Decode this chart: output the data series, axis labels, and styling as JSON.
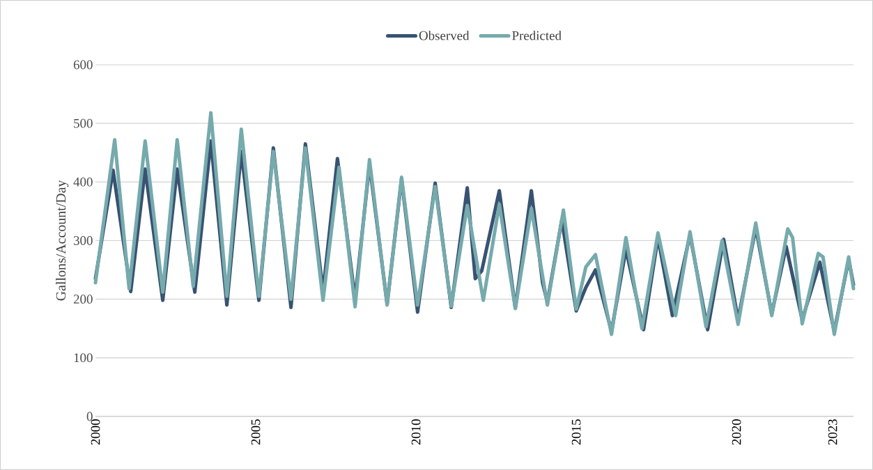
{
  "chart_data": {
    "type": "line",
    "ylabel": "Gallons/Account/Day",
    "xlim": [
      2000,
      2023.65
    ],
    "ylim": [
      0,
      600
    ],
    "xticks": [
      2000,
      2005,
      2010,
      2015,
      2020,
      2023
    ],
    "yticks": [
      0,
      100,
      200,
      300,
      400,
      500,
      600
    ],
    "grid": "y",
    "legend": "top",
    "series": [
      {
        "name": "Observed",
        "color": "#385272",
        "x": [
          2000,
          2000.55,
          2001.1,
          2001.55,
          2002.1,
          2002.55,
          2003.1,
          2003.6,
          2004.1,
          2004.55,
          2005.1,
          2005.55,
          2006.1,
          2006.55,
          2007.1,
          2007.55,
          2008.1,
          2008.55,
          2009.1,
          2009.55,
          2010.05,
          2010.6,
          2011.1,
          2011.6,
          2011.85,
          2012.05,
          2012.6,
          2013.1,
          2013.6,
          2013.95,
          2014.1,
          2014.55,
          2015.0,
          2015.3,
          2015.6,
          2016.1,
          2016.55,
          2017.1,
          2017.55,
          2018.0,
          2018.55,
          2019.1,
          2019.6,
          2020.05,
          2020.6,
          2021.1,
          2021.55,
          2022.05,
          2022.6,
          2023.05,
          2023.5,
          2023.65
        ],
        "values": [
          235,
          420,
          213,
          422,
          198,
          422,
          212,
          470,
          190,
          452,
          198,
          458,
          186,
          465,
          213,
          440,
          200,
          430,
          192,
          405,
          178,
          398,
          186,
          390,
          235,
          248,
          385,
          185,
          385,
          228,
          195,
          335,
          180,
          220,
          250,
          145,
          285,
          148,
          305,
          172,
          310,
          148,
          302,
          165,
          322,
          175,
          290,
          165,
          263,
          145,
          268,
          225
        ]
      },
      {
        "name": "Predicted",
        "color": "#76aaad",
        "x": [
          2000,
          2000.6,
          2001.05,
          2001.55,
          2002.1,
          2002.55,
          2003.05,
          2003.6,
          2004.1,
          2004.55,
          2005.1,
          2005.55,
          2006.1,
          2006.55,
          2007.1,
          2007.6,
          2008.1,
          2008.55,
          2009.1,
          2009.55,
          2010.05,
          2010.6,
          2011.1,
          2011.6,
          2012.1,
          2012.6,
          2013.1,
          2013.6,
          2014.1,
          2014.6,
          2015.0,
          2015.3,
          2015.6,
          2016.1,
          2016.55,
          2017.05,
          2017.55,
          2018.1,
          2018.55,
          2019.05,
          2019.55,
          2020.05,
          2020.6,
          2021.1,
          2021.6,
          2021.75,
          2022.05,
          2022.55,
          2022.7,
          2023.05,
          2023.5,
          2023.65
        ],
        "values": [
          228,
          472,
          218,
          470,
          212,
          472,
          222,
          518,
          205,
          490,
          205,
          452,
          200,
          458,
          198,
          425,
          187,
          438,
          190,
          408,
          190,
          392,
          188,
          360,
          198,
          362,
          184,
          355,
          190,
          352,
          183,
          255,
          276,
          140,
          305,
          150,
          313,
          172,
          315,
          153,
          300,
          157,
          330,
          172,
          320,
          305,
          158,
          278,
          272,
          140,
          272,
          218
        ]
      }
    ]
  }
}
